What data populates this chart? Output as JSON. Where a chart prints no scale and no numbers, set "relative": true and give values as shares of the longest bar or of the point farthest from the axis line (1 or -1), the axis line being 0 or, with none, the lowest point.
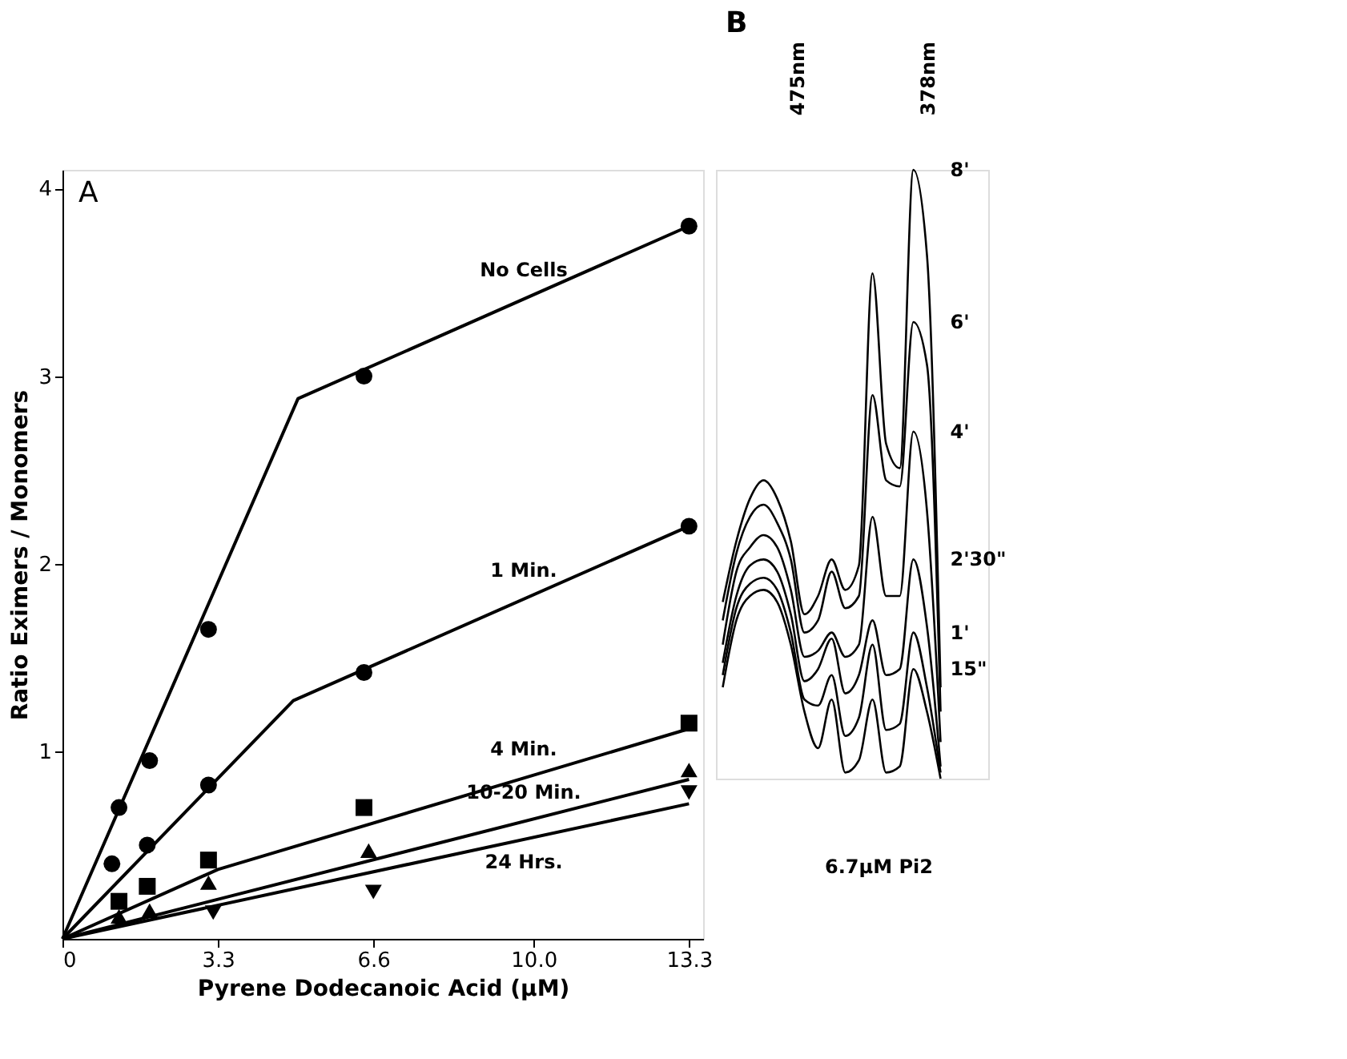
{
  "chart_data": [
    {
      "type": "scatter",
      "xlabel": "Pyrene Dodecanoic Acid (µM)",
      "ylabel": "Ratio Eximers / Monomers",
      "annotations": [
        "A"
      ],
      "xlim": [
        0,
        13.6
      ],
      "xticks": [
        0,
        3.3,
        6.6,
        {
          "value": 10,
          "label": "10.0"
        },
        13.3
      ],
      "ylim": [
        0,
        4.1
      ],
      "yticks": [
        1,
        2,
        3,
        4
      ],
      "grid": false,
      "series": [
        {
          "type": "line",
          "name": "No Cells",
          "color": "#000000",
          "x": [
            0,
            5.0,
            13.3
          ],
          "values": [
            0,
            2.88,
            3.8
          ],
          "marker": "none"
        },
        {
          "type": "line",
          "name": "1 Min.",
          "color": "#000000",
          "x": [
            0,
            4.9,
            13.3
          ],
          "values": [
            0,
            1.27,
            2.2
          ],
          "marker": "none"
        },
        {
          "type": "line",
          "name": "4 Min.",
          "color": "#000000",
          "x": [
            0,
            3.3,
            13.3
          ],
          "values": [
            0,
            0.37,
            1.12
          ],
          "marker": "none"
        },
        {
          "type": "line",
          "name": "10-20 Min.",
          "color": "#000000",
          "x": [
            0,
            13.3
          ],
          "values": [
            0,
            0.85
          ],
          "marker": "none"
        },
        {
          "type": "line",
          "name": "24 Hrs.",
          "color": "#000000",
          "x": [
            0,
            13.3
          ],
          "values": [
            0,
            0.72
          ],
          "marker": "none"
        },
        {
          "type": "scatter",
          "color": "#000000",
          "marker": "circle",
          "x": [
            1.2,
            1.85,
            3.1,
            6.4,
            13.3
          ],
          "values": [
            0.7,
            0.95,
            1.65,
            3.0,
            3.8
          ]
        },
        {
          "type": "scatter",
          "color": "#000000",
          "marker": "circle",
          "x": [
            1.05,
            1.8,
            3.1,
            6.4,
            13.3
          ],
          "values": [
            0.4,
            0.5,
            0.82,
            1.42,
            2.2
          ]
        },
        {
          "type": "scatter",
          "color": "#000000",
          "marker": "square",
          "x": [
            1.2,
            1.8,
            3.1,
            6.4,
            13.3
          ],
          "values": [
            0.2,
            0.28,
            0.42,
            0.7,
            1.15
          ]
        },
        {
          "type": "scatter",
          "color": "#000000",
          "marker": "triangle",
          "x": [
            1.2,
            1.85,
            3.1,
            6.5,
            13.3
          ],
          "values": [
            0.12,
            0.15,
            0.3,
            0.47,
            0.9
          ]
        },
        {
          "type": "scatter",
          "color": "#000000",
          "marker": "triangle",
          "x": [
            3.2,
            6.6,
            13.3
          ],
          "values": [
            0.14,
            0.25,
            0.78
          ]
        }
      ]
    },
    {
      "type": "line",
      "relative": true,
      "annotations": [
        "B",
        "475nm",
        "378nm",
        "6.7µM Pi2"
      ],
      "grid": false,
      "categories": [
        null,
        null,
        null,
        null,
        null,
        null,
        null,
        null,
        null,
        null,
        null,
        null,
        null,
        null,
        null,
        null,
        null
      ],
      "series": [
        {
          "name": "8'",
          "color": "#000000",
          "values": [
            0.29,
            0.39,
            0.46,
            0.49,
            0.46,
            0.39,
            0.27,
            0.3,
            0.36,
            0.31,
            0.35,
            0.83,
            0.55,
            0.51,
            1.0,
            0.86,
            0.15
          ]
        },
        {
          "name": "6'",
          "color": "#000000",
          "values": [
            0.26,
            0.37,
            0.43,
            0.45,
            0.42,
            0.36,
            0.24,
            0.26,
            0.34,
            0.28,
            0.3,
            0.63,
            0.49,
            0.48,
            0.75,
            0.68,
            0.11
          ]
        },
        {
          "name": "4'",
          "color": "#000000",
          "values": [
            0.22,
            0.34,
            0.38,
            0.4,
            0.38,
            0.31,
            0.2,
            0.21,
            0.24,
            0.2,
            0.22,
            0.43,
            0.3,
            0.3,
            0.57,
            0.44,
            0.06
          ]
        },
        {
          "name": "2'30\"",
          "color": "#000000",
          "values": [
            0.19,
            0.3,
            0.35,
            0.36,
            0.34,
            0.27,
            0.16,
            0.18,
            0.23,
            0.14,
            0.17,
            0.26,
            0.17,
            0.18,
            0.36,
            0.25,
            0.02
          ]
        },
        {
          "name": "1'",
          "color": "#000000",
          "values": [
            0.17,
            0.28,
            0.32,
            0.33,
            0.31,
            0.24,
            0.13,
            0.12,
            0.17,
            0.07,
            0.1,
            0.22,
            0.08,
            0.09,
            0.24,
            0.15,
            0.01
          ]
        },
        {
          "name": "15\"",
          "color": "#000000",
          "values": [
            0.15,
            0.26,
            0.3,
            0.31,
            0.29,
            0.22,
            0.11,
            0.05,
            0.13,
            0.01,
            0.03,
            0.13,
            0.01,
            0.02,
            0.18,
            0.11,
            0
          ]
        }
      ]
    }
  ]
}
